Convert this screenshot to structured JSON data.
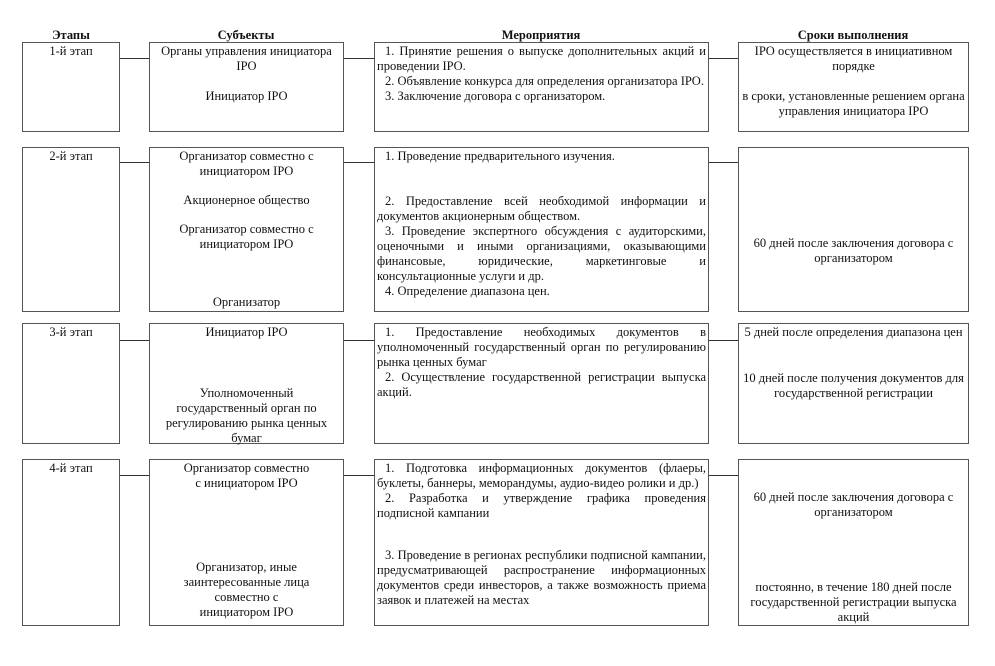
{
  "headers": {
    "stages": "Этапы",
    "subjects": "Субъекты",
    "activities": "Мероприятия",
    "deadlines": "Сроки выполнения"
  },
  "rows": [
    {
      "stage": "1-й этап",
      "subjects": [
        "Органы управления инициатора IPO",
        "Инициатор IPO"
      ],
      "activities": [
        "1. Принятие решения о выпуске дополнительных акций и проведении IPO.",
        "2. Объявление конкурса для определения организатора IPO.",
        "3. Заключение договора с организатором."
      ],
      "deadlines": [
        "IPO осуществляется в инициативном порядке",
        "в сроки, установленные решением органа управления инициатора IPO"
      ]
    },
    {
      "stage": "2-й этап",
      "subjects": [
        "Организатор совместно с инициатором IPO",
        "Акционерное общество",
        "Организатор совместно с инициатором IPO",
        "Организатор"
      ],
      "activities": [
        "1. Проведение предварительного изучения.",
        "2. Предоставление всей необходимой информации и документов акционерным обществом.",
        "3. Проведение экспертного обсуждения с аудиторскими, оценочными и иными организациями, оказывающими финансовые, юридические, маркетинговые и консультационные услуги и др.",
        "4. Определение диапазона цен."
      ],
      "deadlines": [
        "60 дней после заключения договора с организатором"
      ]
    },
    {
      "stage": "3-й этап",
      "subjects": [
        "Инициатор IPO",
        "Уполномоченный государственный орган по регулированию рынка ценных бумаг"
      ],
      "activities": [
        "1. Предоставление необходимых документов в уполномоченный государственный орган по регулированию рынка ценных бумаг",
        "2. Осуществление государственной регистрации выпуска акций."
      ],
      "deadlines": [
        "5 дней после определения диапазона цен",
        "10 дней после получения документов для государственной регистрации"
      ]
    },
    {
      "stage": "4-й этап",
      "subjects": [
        "Организатор совместно с инициатором IPO",
        "Организатор, иные заинтересованные лица совместно с инициатором IPO"
      ],
      "activities": [
        "1. Подготовка информационных документов (флаеры, буклеты, баннеры, меморандумы, аудио-видео ролики и др.)",
        "2. Разработка и утверждение графика проведения подписной кампании",
        "3. Проведение в регионах республики подписной кампании, предусматривающей распространение информационных документов среди инвесторов, а также возможность приема заявок и платежей на местах"
      ],
      "deadlines": [
        "60 дней после заключения договора с организатором",
        "постоянно, в течение 180 дней после государственной регистрации выпуска акций"
      ]
    }
  ]
}
